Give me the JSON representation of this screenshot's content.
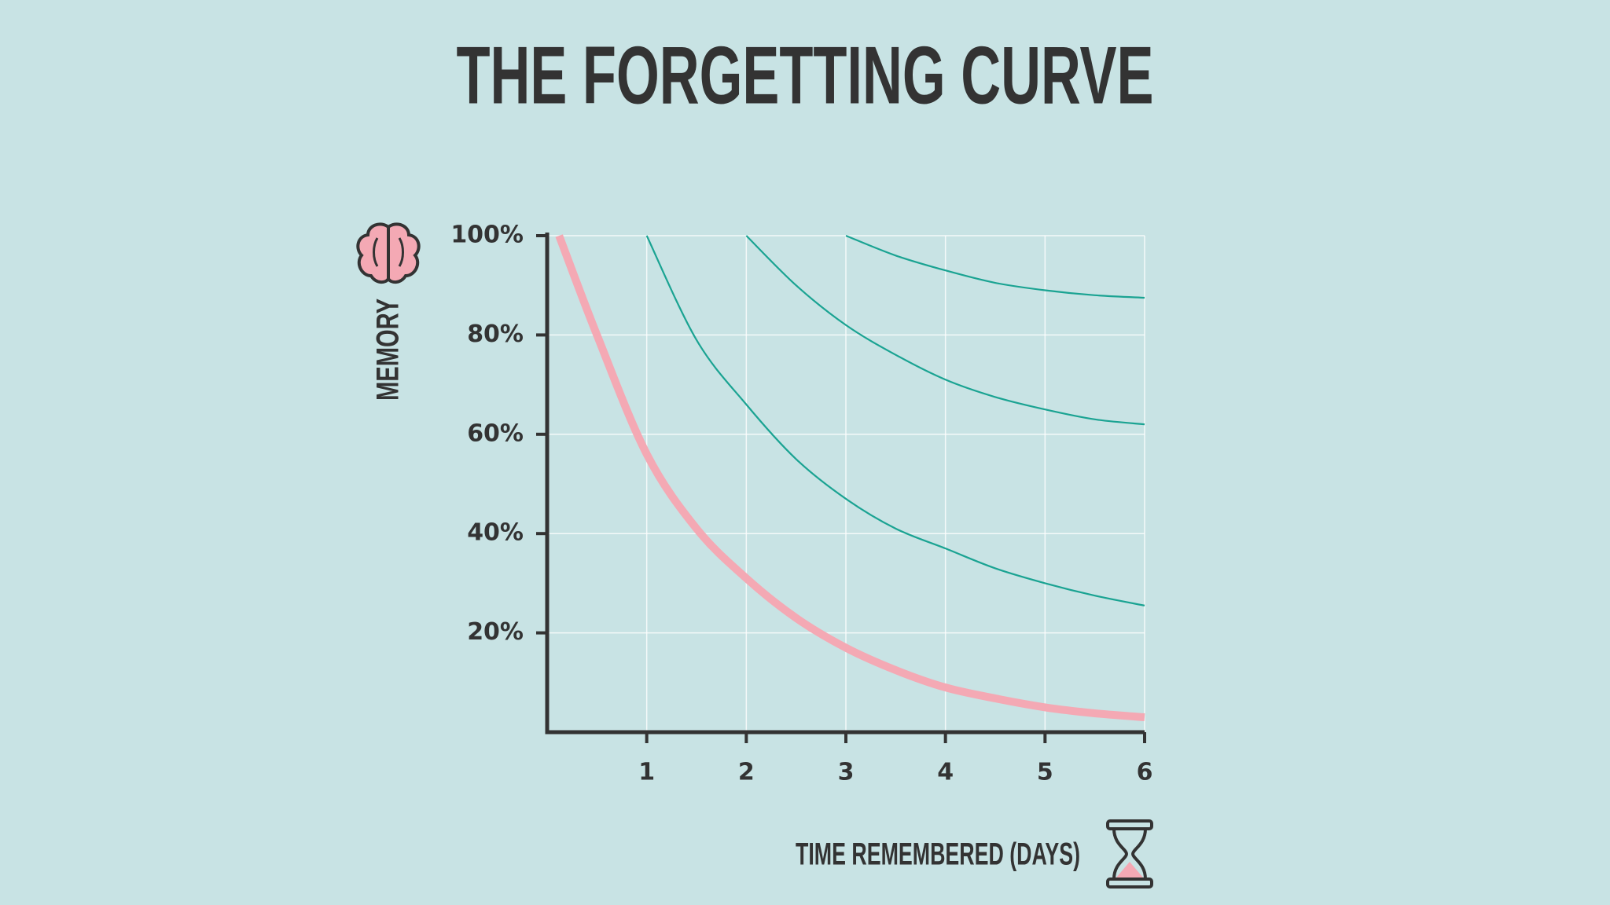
{
  "chart_data": {
    "type": "line",
    "title": "THE FORGETTING CURVE",
    "x_label": "TIME REMEMBERED (DAYS)",
    "y_label": "MEMORY",
    "x": [
      0.12,
      0.5,
      1,
      1.5,
      2,
      2.5,
      3,
      3.5,
      4,
      4.5,
      5,
      5.5,
      6
    ],
    "series": [
      {
        "color": "#f4a9b4",
        "values": [
          100,
          80,
          56,
          41,
          31,
          23,
          17,
          12.5,
          9,
          6.8,
          5,
          3.8,
          3
        ]
      },
      {
        "color": "#1aa392",
        "values": [
          null,
          null,
          100,
          79,
          66,
          55,
          47,
          41,
          37,
          33,
          30,
          27.5,
          25.5
        ]
      },
      {
        "color": "#1aa392",
        "values": [
          null,
          null,
          null,
          null,
          100,
          90,
          82,
          76,
          71,
          67.5,
          65,
          63,
          62
        ]
      },
      {
        "color": "#1aa392",
        "values": [
          null,
          null,
          null,
          null,
          null,
          null,
          100,
          96,
          93,
          90.5,
          89,
          88,
          87.5
        ]
      }
    ],
    "xlim": [
      0,
      6
    ],
    "ylim": [
      0,
      100
    ],
    "xticks": [
      1,
      2,
      3,
      4,
      5,
      6
    ],
    "yticks": [
      {
        "value": 20,
        "label": "20%"
      },
      {
        "value": 40,
        "label": "40%"
      },
      {
        "value": 60,
        "label": "60%"
      },
      {
        "value": 80,
        "label": "80%"
      },
      {
        "value": 100,
        "label": "100%"
      }
    ],
    "grid": true
  }
}
